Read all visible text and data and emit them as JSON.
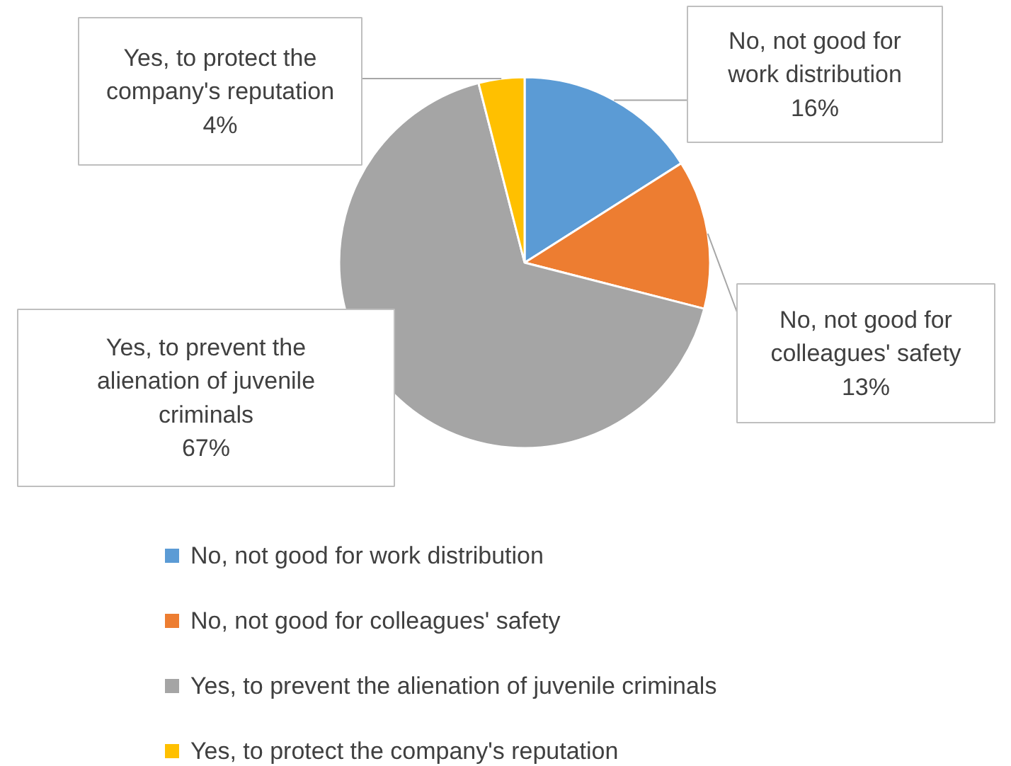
{
  "chart_data": {
    "type": "pie",
    "categories": [
      "No, not good for work distribution",
      "No, not good for colleagues' safety",
      "Yes, to prevent the alienation of juvenile criminals",
      "Yes, to protect the company's reputation"
    ],
    "values": [
      16,
      13,
      67,
      4
    ],
    "value_labels": [
      "16%",
      "13%",
      "67%",
      "4%"
    ],
    "colors": [
      "#5b9bd5",
      "#ed7d31",
      "#a5a5a5",
      "#ffc000"
    ],
    "legend": "bottom"
  }
}
